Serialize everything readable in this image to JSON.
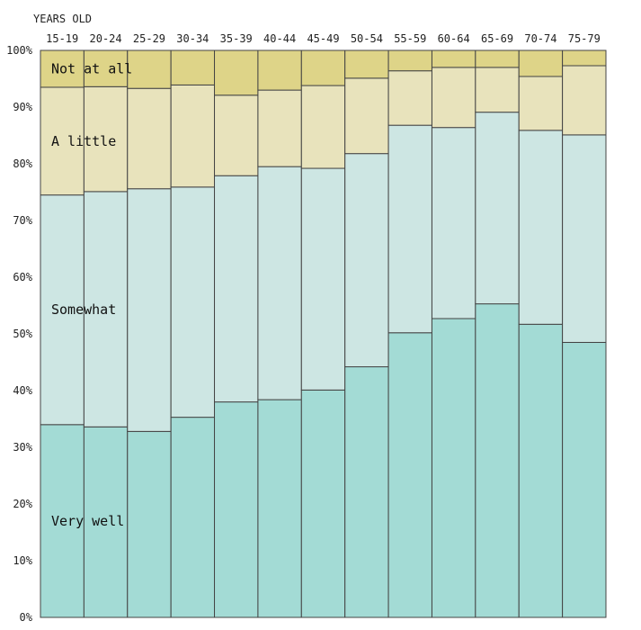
{
  "chart_data": {
    "type": "bar",
    "stacked": true,
    "percent": true,
    "title": "",
    "xlabel": "YEARS OLD",
    "ylabel": "",
    "ylim": [
      0,
      100
    ],
    "yticks": [
      "0%",
      "10%",
      "20%",
      "30%",
      "40%",
      "50%",
      "60%",
      "70%",
      "80%",
      "90%",
      "100%"
    ],
    "grid": false,
    "legend": "inline labels on first bar",
    "categories": [
      "15-19",
      "20-24",
      "25-29",
      "30-34",
      "35-39",
      "40-44",
      "45-49",
      "50-54",
      "55-59",
      "60-64",
      "65-69",
      "70-74",
      "75-79"
    ],
    "series": [
      {
        "name": "Very well",
        "color": "#a3dbd5",
        "values": [
          34.0,
          33.6,
          32.8,
          35.3,
          38.0,
          38.4,
          40.1,
          44.2,
          50.2,
          52.7,
          55.3,
          51.7,
          48.5
        ]
      },
      {
        "name": "Somewhat",
        "color": "#cde6e3",
        "values": [
          40.5,
          41.5,
          42.8,
          40.6,
          39.9,
          41.1,
          39.1,
          37.6,
          36.6,
          33.7,
          33.8,
          34.2,
          36.6
        ]
      },
      {
        "name": "A little",
        "color": "#e8e3bc",
        "values": [
          19.0,
          18.5,
          17.7,
          18.0,
          14.2,
          13.5,
          14.6,
          13.3,
          9.6,
          10.6,
          7.9,
          9.5,
          12.2
        ]
      },
      {
        "name": "Not at all",
        "color": "#ded488",
        "values": [
          6.5,
          6.4,
          6.7,
          6.1,
          7.9,
          7.0,
          6.2,
          4.9,
          3.6,
          3.0,
          3.0,
          4.6,
          2.7
        ]
      }
    ]
  }
}
